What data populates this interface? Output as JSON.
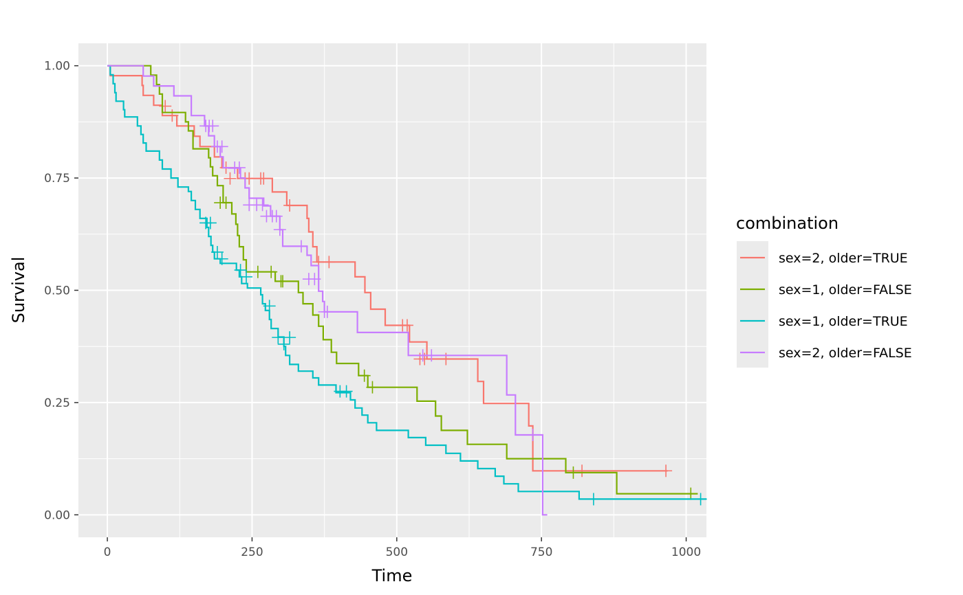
{
  "chart_data": {
    "type": "line",
    "subtype": "kaplan-meier survival step curves with censor marks",
    "xlabel": "Time",
    "ylabel": "Survival",
    "xlim": [
      -50,
      1035
    ],
    "ylim": [
      -0.05,
      1.05
    ],
    "x_ticks": [
      0,
      250,
      500,
      750,
      1000
    ],
    "x_tick_labels": [
      "0",
      "250",
      "500",
      "750",
      "1000"
    ],
    "y_ticks": [
      0,
      0.25,
      0.5,
      0.75,
      1.0
    ],
    "y_tick_labels": [
      "0.00",
      "0.25",
      "0.50",
      "0.75",
      "1.00"
    ],
    "grid": true,
    "legend": {
      "title": "combination",
      "position": "right"
    },
    "series": [
      {
        "name": "sex=2, older=TRUE",
        "color": "#F8766D",
        "steps": [
          [
            0,
            1.0
          ],
          [
            5,
            0.978
          ],
          [
            60,
            0.956
          ],
          [
            62,
            0.934
          ],
          [
            80,
            0.912
          ],
          [
            95,
            0.889
          ],
          [
            120,
            0.866
          ],
          [
            150,
            0.843
          ],
          [
            160,
            0.82
          ],
          [
            185,
            0.797
          ],
          [
            198,
            0.773
          ],
          [
            225,
            0.749
          ],
          [
            285,
            0.719
          ],
          [
            310,
            0.689
          ],
          [
            345,
            0.66
          ],
          [
            348,
            0.63
          ],
          [
            355,
            0.597
          ],
          [
            362,
            0.563
          ],
          [
            428,
            0.53
          ],
          [
            445,
            0.495
          ],
          [
            455,
            0.458
          ],
          [
            480,
            0.422
          ],
          [
            522,
            0.385
          ],
          [
            552,
            0.347
          ],
          [
            640,
            0.297
          ],
          [
            650,
            0.248
          ],
          [
            728,
            0.198
          ],
          [
            735,
            0.148
          ],
          [
            735,
            0.098
          ],
          [
            968,
            0.098
          ]
        ],
        "censor": [
          [
            100,
            0.91
          ],
          [
            112,
            0.889
          ],
          [
            205,
            0.773
          ],
          [
            212,
            0.749
          ],
          [
            238,
            0.749
          ],
          [
            245,
            0.749
          ],
          [
            265,
            0.749
          ],
          [
            270,
            0.749
          ],
          [
            315,
            0.689
          ],
          [
            365,
            0.563
          ],
          [
            383,
            0.563
          ],
          [
            510,
            0.422
          ],
          [
            518,
            0.422
          ],
          [
            540,
            0.347
          ],
          [
            548,
            0.347
          ],
          [
            585,
            0.347
          ],
          [
            820,
            0.098
          ],
          [
            965,
            0.098
          ]
        ]
      },
      {
        "name": "sex=1, older=FALSE",
        "color": "#7CAE00",
        "steps": [
          [
            0,
            1.0
          ],
          [
            70,
            1.0
          ],
          [
            75,
            0.979
          ],
          [
            85,
            0.958
          ],
          [
            90,
            0.937
          ],
          [
            95,
            0.896
          ],
          [
            135,
            0.875
          ],
          [
            140,
            0.855
          ],
          [
            148,
            0.815
          ],
          [
            175,
            0.795
          ],
          [
            178,
            0.775
          ],
          [
            182,
            0.755
          ],
          [
            190,
            0.733
          ],
          [
            200,
            0.695
          ],
          [
            215,
            0.67
          ],
          [
            222,
            0.647
          ],
          [
            225,
            0.622
          ],
          [
            228,
            0.597
          ],
          [
            235,
            0.568
          ],
          [
            240,
            0.541
          ],
          [
            275,
            0.541
          ],
          [
            290,
            0.52
          ],
          [
            330,
            0.495
          ],
          [
            338,
            0.47
          ],
          [
            355,
            0.445
          ],
          [
            365,
            0.42
          ],
          [
            373,
            0.39
          ],
          [
            387,
            0.362
          ],
          [
            396,
            0.337
          ],
          [
            434,
            0.31
          ],
          [
            450,
            0.284
          ],
          [
            458,
            0.284
          ],
          [
            535,
            0.253
          ],
          [
            567,
            0.22
          ],
          [
            577,
            0.188
          ],
          [
            622,
            0.157
          ],
          [
            690,
            0.125
          ],
          [
            792,
            0.094
          ],
          [
            880,
            0.047
          ],
          [
            1020,
            0.047
          ]
        ],
        "censor": [
          [
            195,
            0.695
          ],
          [
            205,
            0.695
          ],
          [
            260,
            0.541
          ],
          [
            283,
            0.541
          ],
          [
            300,
            0.52
          ],
          [
            303,
            0.52
          ],
          [
            444,
            0.31
          ],
          [
            458,
            0.284
          ],
          [
            805,
            0.094
          ],
          [
            1008,
            0.047
          ]
        ]
      },
      {
        "name": "sex=1, older=TRUE",
        "color": "#00BFC4",
        "steps": [
          [
            0,
            1.0
          ],
          [
            5,
            0.98
          ],
          [
            10,
            0.96
          ],
          [
            13,
            0.94
          ],
          [
            15,
            0.921
          ],
          [
            28,
            0.902
          ],
          [
            30,
            0.886
          ],
          [
            52,
            0.866
          ],
          [
            58,
            0.847
          ],
          [
            62,
            0.828
          ],
          [
            67,
            0.81
          ],
          [
            90,
            0.79
          ],
          [
            95,
            0.77
          ],
          [
            110,
            0.75
          ],
          [
            122,
            0.73
          ],
          [
            140,
            0.72
          ],
          [
            145,
            0.7
          ],
          [
            152,
            0.68
          ],
          [
            160,
            0.66
          ],
          [
            172,
            0.64
          ],
          [
            175,
            0.62
          ],
          [
            179,
            0.6
          ],
          [
            182,
            0.585
          ],
          [
            185,
            0.57
          ],
          [
            195,
            0.56
          ],
          [
            223,
            0.545
          ],
          [
            228,
            0.53
          ],
          [
            232,
            0.515
          ],
          [
            242,
            0.505
          ],
          [
            265,
            0.49
          ],
          [
            268,
            0.47
          ],
          [
            273,
            0.455
          ],
          [
            280,
            0.435
          ],
          [
            283,
            0.415
          ],
          [
            295,
            0.396
          ],
          [
            305,
            0.375
          ],
          [
            308,
            0.355
          ],
          [
            315,
            0.335
          ],
          [
            330,
            0.32
          ],
          [
            355,
            0.305
          ],
          [
            365,
            0.289
          ],
          [
            395,
            0.272
          ],
          [
            420,
            0.256
          ],
          [
            428,
            0.238
          ],
          [
            440,
            0.222
          ],
          [
            450,
            0.205
          ],
          [
            465,
            0.188
          ],
          [
            520,
            0.172
          ],
          [
            550,
            0.155
          ],
          [
            585,
            0.137
          ],
          [
            610,
            0.12
          ],
          [
            615,
            0.12
          ],
          [
            640,
            0.103
          ],
          [
            670,
            0.086
          ],
          [
            685,
            0.069
          ],
          [
            710,
            0.052
          ],
          [
            815,
            0.035
          ],
          [
            1035,
            0.035
          ]
        ],
        "censor": [
          [
            170,
            0.65
          ],
          [
            178,
            0.65
          ],
          [
            190,
            0.585
          ],
          [
            198,
            0.57
          ],
          [
            230,
            0.545
          ],
          [
            240,
            0.53
          ],
          [
            280,
            0.465
          ],
          [
            295,
            0.395
          ],
          [
            305,
            0.38
          ],
          [
            315,
            0.395
          ],
          [
            402,
            0.275
          ],
          [
            413,
            0.275
          ],
          [
            840,
            0.035
          ],
          [
            1025,
            0.035
          ]
        ]
      },
      {
        "name": "sex=2, older=FALSE",
        "color": "#C77CFF",
        "steps": [
          [
            0,
            1.0
          ],
          [
            60,
            1.0
          ],
          [
            62,
            0.977
          ],
          [
            80,
            0.955
          ],
          [
            115,
            0.933
          ],
          [
            145,
            0.889
          ],
          [
            168,
            0.866
          ],
          [
            175,
            0.844
          ],
          [
            185,
            0.82
          ],
          [
            195,
            0.797
          ],
          [
            200,
            0.773
          ],
          [
            210,
            0.772
          ],
          [
            230,
            0.75
          ],
          [
            238,
            0.728
          ],
          [
            245,
            0.705
          ],
          [
            270,
            0.688
          ],
          [
            282,
            0.665
          ],
          [
            298,
            0.635
          ],
          [
            303,
            0.598
          ],
          [
            345,
            0.578
          ],
          [
            352,
            0.555
          ],
          [
            365,
            0.498
          ],
          [
            372,
            0.475
          ],
          [
            375,
            0.452
          ],
          [
            432,
            0.406
          ],
          [
            520,
            0.355
          ],
          [
            690,
            0.267
          ],
          [
            705,
            0.178
          ],
          [
            752,
            0.0
          ],
          [
            760,
            0.0
          ]
        ],
        "censor": [
          [
            170,
            0.866
          ],
          [
            176,
            0.866
          ],
          [
            182,
            0.866
          ],
          [
            190,
            0.82
          ],
          [
            198,
            0.82
          ],
          [
            220,
            0.773
          ],
          [
            228,
            0.773
          ],
          [
            245,
            0.69
          ],
          [
            258,
            0.69
          ],
          [
            268,
            0.69
          ],
          [
            275,
            0.665
          ],
          [
            285,
            0.665
          ],
          [
            292,
            0.665
          ],
          [
            298,
            0.635
          ],
          [
            335,
            0.598
          ],
          [
            348,
            0.525
          ],
          [
            358,
            0.525
          ],
          [
            375,
            0.452
          ],
          [
            380,
            0.452
          ],
          [
            545,
            0.355
          ],
          [
            560,
            0.355
          ],
          [
            735,
            0.178
          ]
        ]
      }
    ]
  }
}
